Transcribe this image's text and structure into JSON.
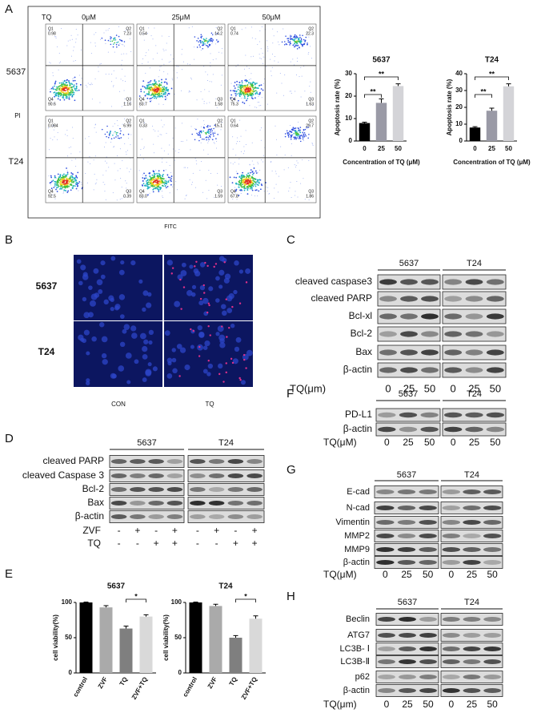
{
  "figure": {
    "flow": {
      "letter": "A",
      "treatment": "TQ",
      "doses": [
        "0μM",
        "25μM",
        "50μM"
      ],
      "cell_lines": [
        "5637",
        "T24"
      ],
      "y_axis": "PI",
      "x_axis": "FITC",
      "quadrant_names": [
        "Q1",
        "Q2",
        "Q4",
        "Q3"
      ],
      "values": [
        [
          [
            "0.98",
            "7.23",
            "90.6",
            "1.16"
          ],
          [
            "0.54",
            "14.2",
            "83.7",
            "1.58"
          ],
          [
            "0.74",
            "22.3",
            "75.3",
            "1.63"
          ]
        ],
        [
          [
            "0.084",
            "6.99",
            "92.5",
            "0.39"
          ],
          [
            "0.33",
            "15.1",
            "83.0",
            "1.59"
          ],
          [
            "0.64",
            "29.7",
            "67.8",
            "1.86"
          ]
        ]
      ]
    },
    "fluorescence": {
      "letter": "B",
      "rows": [
        "5637",
        "T24"
      ],
      "columns": [
        "CON",
        "TQ"
      ]
    },
    "viability_letter": "E",
    "blots": [
      {
        "letter": "C",
        "groups": [
          "5637",
          "T24"
        ],
        "rows": [
          "cleaved caspase3",
          "cleaved PARP",
          "Bcl-xl",
          "Bcl-2",
          "Bax",
          "β-actin"
        ],
        "lane_label": "TQ(μm)",
        "lanes": [
          "0",
          "25",
          "50",
          "0",
          "25",
          "50"
        ]
      },
      {
        "letter": "F",
        "groups": [
          "5637",
          "T24"
        ],
        "rows": [
          "PD-L1",
          "β-actin"
        ],
        "lane_label": "TQ(μM)",
        "lanes": [
          "0",
          "25",
          "50",
          "0",
          "25",
          "50"
        ]
      },
      {
        "letter": "G",
        "groups": [
          "5637",
          "T24"
        ],
        "rows": [
          "E-cad",
          "N-cad",
          "Vimentin",
          "MMP2",
          "MMP9",
          "β-actin"
        ],
        "lane_label": "TQ(μM)",
        "lanes": [
          "0",
          "25",
          "50",
          "0",
          "25",
          "50"
        ]
      },
      {
        "letter": "H",
        "groups": [
          "5637",
          "T24"
        ],
        "rows": [
          "Beclin",
          "ATG7",
          "LC3B- Ⅰ",
          "LC3B-Ⅱ",
          "p62",
          "β-actin"
        ],
        "lane_label": "TQ(μm)",
        "lanes": [
          "0",
          "25",
          "50",
          "0",
          "25",
          "50"
        ]
      },
      {
        "letter": "D",
        "groups": [
          "5637",
          "T24"
        ],
        "rows": [
          "cleaved PARP",
          "cleaved Caspase 3",
          "Bcl-2",
          "Bax",
          "β-actin"
        ],
        "conditions": [
          {
            "name": "ZVF",
            "signs": [
              "-",
              "+",
              "-",
              "+",
              "-",
              "+",
              "-",
              "+"
            ]
          },
          {
            "name": "TQ",
            "signs": [
              "-",
              "-",
              "+",
              "+",
              "-",
              "-",
              "+",
              "+"
            ]
          }
        ]
      }
    ]
  },
  "chart_data": [
    {
      "type": "bar",
      "title": "5637",
      "y_label": "Apoptosis rate (%)",
      "x_label": "Concentration of TQ (μM)",
      "categories": [
        "0",
        "25",
        "50"
      ],
      "values": [
        8,
        17,
        24.5
      ],
      "errors": [
        0.4,
        1.8,
        1
      ],
      "colors": [
        "#000000",
        "#9a9aa6",
        "#d4d4d8"
      ],
      "ylim": [
        0,
        30
      ],
      "yticks": [
        0,
        10,
        20,
        30
      ],
      "annotations": [
        "**",
        "**"
      ]
    },
    {
      "type": "bar",
      "title": "T24",
      "y_label": "Apoptosis rate (%)",
      "x_label": "Concentration of TQ (μM)",
      "categories": [
        "0",
        "25",
        "50"
      ],
      "values": [
        8,
        18,
        32.5
      ],
      "errors": [
        0.5,
        1.5,
        1.5
      ],
      "colors": [
        "#000000",
        "#9a9aa6",
        "#d4d4d8"
      ],
      "ylim": [
        0,
        40
      ],
      "yticks": [
        0,
        10,
        20,
        30,
        40
      ],
      "annotations": [
        "**",
        "**"
      ]
    },
    {
      "type": "bar",
      "title": "5637",
      "y_label": "cell viability(%)",
      "categories": [
        "control",
        "ZVF",
        "TQ",
        "ZVF+TQ"
      ],
      "values": [
        100,
        93,
        63,
        80
      ],
      "errors": [
        0.5,
        2.5,
        3.5,
        2.5
      ],
      "colors": [
        "#000000",
        "#aaaaaa",
        "#7f7f7f",
        "#d9d9d9"
      ],
      "ylim": [
        0,
        100
      ],
      "yticks": [
        0,
        50,
        100
      ],
      "annotations": [
        "*"
      ]
    },
    {
      "type": "bar",
      "title": "T24",
      "y_label": "cell viability(%)",
      "categories": [
        "control",
        "ZVF",
        "TQ",
        "ZVF+TQ"
      ],
      "values": [
        100,
        95,
        50,
        77
      ],
      "errors": [
        0.5,
        2.5,
        3,
        4
      ],
      "colors": [
        "#000000",
        "#aaaaaa",
        "#7f7f7f",
        "#d9d9d9"
      ],
      "ylim": [
        0,
        100
      ],
      "yticks": [
        0,
        50,
        100
      ],
      "annotations": [
        "*"
      ]
    }
  ]
}
